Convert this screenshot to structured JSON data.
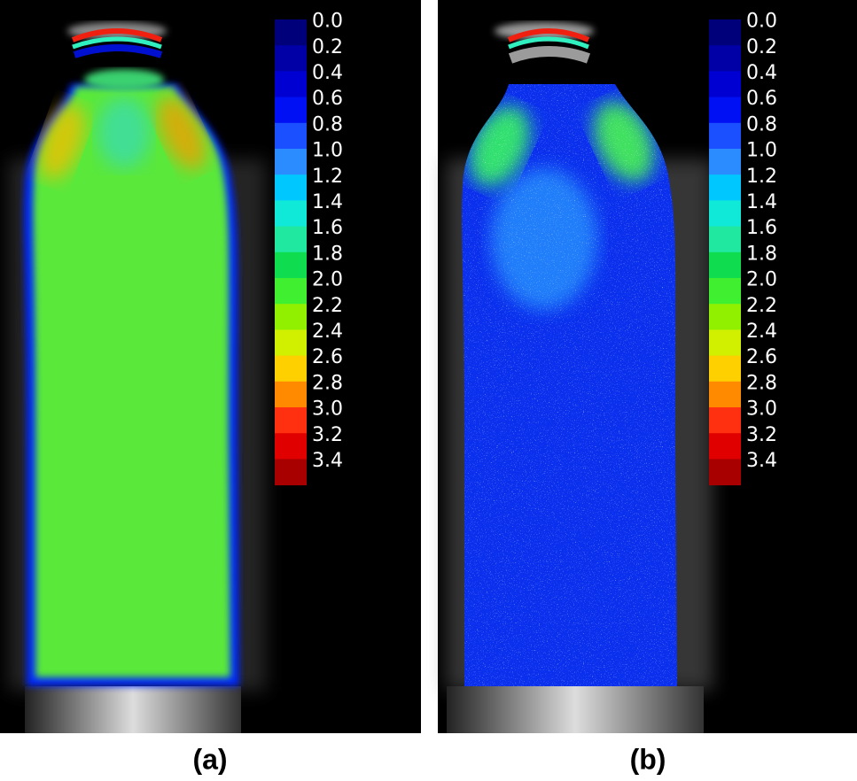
{
  "colorbar": {
    "ticks": [
      "0.0",
      "0.2",
      "0.4",
      "0.6",
      "0.8",
      "1.0",
      "1.2",
      "1.4",
      "1.6",
      "1.8",
      "2.0",
      "2.2",
      "2.4",
      "2.6",
      "2.8",
      "3.0",
      "3.2",
      "3.4"
    ],
    "colors": [
      "#00007a",
      "#0000a6",
      "#0000d2",
      "#0010f5",
      "#1a50ff",
      "#2a8cff",
      "#00c8ff",
      "#10e8d8",
      "#20e8a0",
      "#10dc50",
      "#40f030",
      "#90f000",
      "#d0f000",
      "#ffd000",
      "#ff8a00",
      "#ff3010",
      "#e00000",
      "#a80000"
    ]
  },
  "panels": [
    {
      "label": "(a)"
    },
    {
      "label": "(b)"
    }
  ]
}
